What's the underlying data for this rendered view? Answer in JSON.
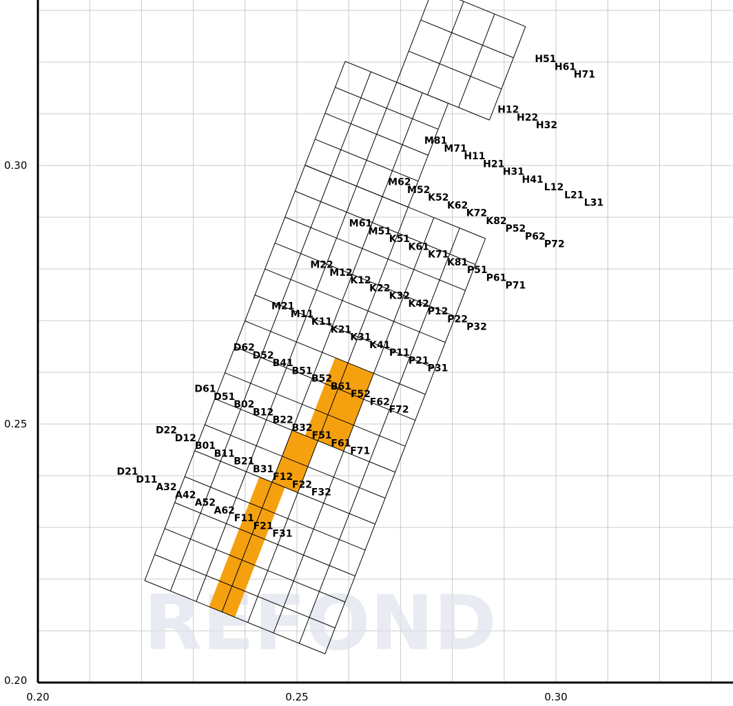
{
  "chart_data": {
    "type": "scatter",
    "subtype": "cie-chromaticity-binning-grid",
    "title": "",
    "xlabel": "",
    "ylabel": "",
    "xlim": [
      0.2,
      0.34
    ],
    "ylim": [
      0.2,
      0.33
    ],
    "x_ticks": [
      {
        "value": 0.2,
        "label": "0.20"
      },
      {
        "value": 0.25,
        "label": "0.25"
      },
      {
        "value": 0.3,
        "label": "0.30"
      }
    ],
    "y_ticks": [
      {
        "value": 0.2,
        "label": "0.20"
      },
      {
        "value": 0.25,
        "label": "0.25"
      },
      {
        "value": 0.3,
        "label": "0.30"
      }
    ],
    "grid": true,
    "grid_step": 0.01,
    "highlight_color": "#f5a00f",
    "watermark": "REFOND",
    "bins": [
      {
        "label": "H51",
        "x": 0.298,
        "y": 0.32
      },
      {
        "label": "H61",
        "x": 0.3018,
        "y": 0.3185
      },
      {
        "label": "H71",
        "x": 0.3055,
        "y": 0.317
      },
      {
        "label": "H12",
        "x": 0.2908,
        "y": 0.3102
      },
      {
        "label": "H22",
        "x": 0.2945,
        "y": 0.3087
      },
      {
        "label": "H32",
        "x": 0.2982,
        "y": 0.3072
      },
      {
        "label": "M81",
        "x": 0.2768,
        "y": 0.3042
      },
      {
        "label": "M71",
        "x": 0.2806,
        "y": 0.3027
      },
      {
        "label": "H11",
        "x": 0.2843,
        "y": 0.3012
      },
      {
        "label": "H21",
        "x": 0.288,
        "y": 0.2997
      },
      {
        "label": "H31",
        "x": 0.2918,
        "y": 0.2982
      },
      {
        "label": "H41",
        "x": 0.2955,
        "y": 0.2967
      },
      {
        "label": "L12",
        "x": 0.2996,
        "y": 0.2952
      },
      {
        "label": "L21",
        "x": 0.3035,
        "y": 0.2937
      },
      {
        "label": "L31",
        "x": 0.3073,
        "y": 0.2922
      },
      {
        "label": "M62",
        "x": 0.2698,
        "y": 0.2962
      },
      {
        "label": "M52",
        "x": 0.2735,
        "y": 0.2947
      },
      {
        "label": "K52",
        "x": 0.2773,
        "y": 0.2932
      },
      {
        "label": "K62",
        "x": 0.281,
        "y": 0.2917
      },
      {
        "label": "K72",
        "x": 0.2847,
        "y": 0.2902
      },
      {
        "label": "K82",
        "x": 0.2885,
        "y": 0.2887
      },
      {
        "label": "P52",
        "x": 0.2922,
        "y": 0.2872
      },
      {
        "label": "P62",
        "x": 0.296,
        "y": 0.2857
      },
      {
        "label": "P72",
        "x": 0.2997,
        "y": 0.2842
      },
      {
        "label": "M61",
        "x": 0.2623,
        "y": 0.2882
      },
      {
        "label": "M51",
        "x": 0.266,
        "y": 0.2867
      },
      {
        "label": "K51",
        "x": 0.2698,
        "y": 0.2852
      },
      {
        "label": "K61",
        "x": 0.2735,
        "y": 0.2837
      },
      {
        "label": "K71",
        "x": 0.2773,
        "y": 0.2822
      },
      {
        "label": "K81",
        "x": 0.281,
        "y": 0.2807
      },
      {
        "label": "P51",
        "x": 0.2848,
        "y": 0.2792
      },
      {
        "label": "P61",
        "x": 0.2885,
        "y": 0.2777
      },
      {
        "label": "P71",
        "x": 0.2922,
        "y": 0.2762
      },
      {
        "label": "M22",
        "x": 0.2548,
        "y": 0.2802
      },
      {
        "label": "M12",
        "x": 0.2585,
        "y": 0.2787
      },
      {
        "label": "K12",
        "x": 0.2623,
        "y": 0.2772
      },
      {
        "label": "K22",
        "x": 0.266,
        "y": 0.2757
      },
      {
        "label": "K32",
        "x": 0.2698,
        "y": 0.2742
      },
      {
        "label": "K42",
        "x": 0.2735,
        "y": 0.2727
      },
      {
        "label": "P12",
        "x": 0.2772,
        "y": 0.2712
      },
      {
        "label": "P22",
        "x": 0.281,
        "y": 0.2697
      },
      {
        "label": "P32",
        "x": 0.2847,
        "y": 0.2682
      },
      {
        "label": "M21",
        "x": 0.2473,
        "y": 0.2722
      },
      {
        "label": "M11",
        "x": 0.251,
        "y": 0.2707
      },
      {
        "label": "K11",
        "x": 0.2548,
        "y": 0.2692
      },
      {
        "label": "K21",
        "x": 0.2585,
        "y": 0.2677
      },
      {
        "label": "K31",
        "x": 0.2623,
        "y": 0.2662
      },
      {
        "label": "K41",
        "x": 0.266,
        "y": 0.2647
      },
      {
        "label": "P11",
        "x": 0.2698,
        "y": 0.2632
      },
      {
        "label": "P21",
        "x": 0.2735,
        "y": 0.2617
      },
      {
        "label": "P31",
        "x": 0.2772,
        "y": 0.2602
      },
      {
        "label": "D62",
        "x": 0.2398,
        "y": 0.2642
      },
      {
        "label": "D52",
        "x": 0.2435,
        "y": 0.2627
      },
      {
        "label": "B41",
        "x": 0.2473,
        "y": 0.2612
      },
      {
        "label": "B51",
        "x": 0.251,
        "y": 0.2597
      },
      {
        "label": "B52",
        "x": 0.2548,
        "y": 0.2582
      },
      {
        "label": "B61",
        "x": 0.2585,
        "y": 0.2567
      },
      {
        "label": "F52",
        "x": 0.2623,
        "y": 0.2552
      },
      {
        "label": "F62",
        "x": 0.266,
        "y": 0.2537
      },
      {
        "label": "F72",
        "x": 0.2697,
        "y": 0.2522
      },
      {
        "label": "D61",
        "x": 0.2323,
        "y": 0.2562
      },
      {
        "label": "D51",
        "x": 0.236,
        "y": 0.2547
      },
      {
        "label": "B02",
        "x": 0.2398,
        "y": 0.2532
      },
      {
        "label": "B12",
        "x": 0.2435,
        "y": 0.2517
      },
      {
        "label": "B22",
        "x": 0.2473,
        "y": 0.2502
      },
      {
        "label": "B32",
        "x": 0.251,
        "y": 0.2487
      },
      {
        "label": "F51",
        "x": 0.2548,
        "y": 0.2472
      },
      {
        "label": "F61",
        "x": 0.2585,
        "y": 0.2457
      },
      {
        "label": "F71",
        "x": 0.2622,
        "y": 0.2442
      },
      {
        "label": "D22",
        "x": 0.2248,
        "y": 0.2482
      },
      {
        "label": "D12",
        "x": 0.2285,
        "y": 0.2467
      },
      {
        "label": "B01",
        "x": 0.2323,
        "y": 0.2452
      },
      {
        "label": "B11",
        "x": 0.236,
        "y": 0.2437
      },
      {
        "label": "B21",
        "x": 0.2398,
        "y": 0.2422
      },
      {
        "label": "B31",
        "x": 0.2435,
        "y": 0.2407
      },
      {
        "label": "F12",
        "x": 0.2473,
        "y": 0.2392
      },
      {
        "label": "F22",
        "x": 0.251,
        "y": 0.2377
      },
      {
        "label": "F32",
        "x": 0.2547,
        "y": 0.2362
      },
      {
        "label": "D21",
        "x": 0.2173,
        "y": 0.2402
      },
      {
        "label": "D11",
        "x": 0.221,
        "y": 0.2387
      },
      {
        "label": "A32",
        "x": 0.2248,
        "y": 0.2372
      },
      {
        "label": "A42",
        "x": 0.2285,
        "y": 0.2357
      },
      {
        "label": "A52",
        "x": 0.2323,
        "y": 0.2342
      },
      {
        "label": "A62",
        "x": 0.236,
        "y": 0.2327
      },
      {
        "label": "F11",
        "x": 0.2398,
        "y": 0.2312
      },
      {
        "label": "F21",
        "x": 0.2435,
        "y": 0.2297
      },
      {
        "label": "F31",
        "x": 0.2472,
        "y": 0.2282
      }
    ],
    "highlighted_bins": [
      "K21",
      "K31",
      "B51",
      "B12",
      "B22",
      "B11",
      "B21"
    ]
  }
}
